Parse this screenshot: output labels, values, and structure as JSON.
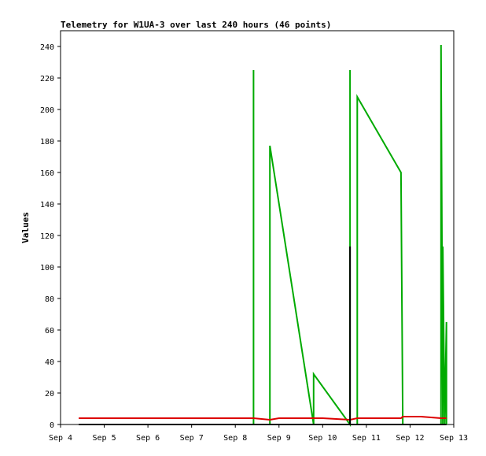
{
  "chart_data": {
    "type": "line",
    "title": "Telemetry for W1UA-3 over last 240 hours (46 points)",
    "ylabel": "Values",
    "xlabel": "",
    "grid": false,
    "legend": "none",
    "xlim": [
      "Sep 4",
      "Sep 13"
    ],
    "ylim": [
      0,
      250
    ],
    "x_ticks": [
      "Sep 4",
      "Sep 5",
      "Sep 6",
      "Sep 7",
      "Sep 8",
      "Sep 9",
      "Sep 10",
      "Sep 11",
      "Sep 12",
      "Sep 13"
    ],
    "y_ticks": [
      0,
      20,
      40,
      60,
      80,
      100,
      120,
      140,
      160,
      180,
      200,
      220,
      240
    ],
    "series": [
      {
        "color": "#00aa00",
        "points": [
          [
            "Sep 8 10:00",
            0
          ],
          [
            "Sep 8 10:00",
            225
          ],
          [
            "Sep 8 10:00",
            0
          ],
          [
            "Sep 8 19:00",
            0
          ],
          [
            "Sep 8 19:00",
            177
          ],
          [
            "Sep 9 19:00",
            0
          ],
          [
            "Sep 9 19:00",
            32
          ],
          [
            "Sep 10 15:00",
            0
          ],
          [
            "Sep 10 15:00",
            225
          ],
          [
            "Sep 10 15:00",
            0
          ],
          [
            "Sep 10 19:00",
            0
          ],
          [
            "Sep 10 19:00",
            208
          ],
          [
            "Sep 11 19:00",
            160
          ],
          [
            "Sep 11 20:00",
            0
          ],
          [
            "Sep 12 17:00",
            0
          ],
          [
            "Sep 12 17:00",
            241
          ],
          [
            "Sep 12 18:00",
            0
          ],
          [
            "Sep 12 18:00",
            113
          ],
          [
            "Sep 12 19:00",
            0
          ],
          [
            "Sep 12 20:00",
            65
          ],
          [
            "Sep 12 20:00",
            0
          ]
        ]
      },
      {
        "color": "#dd0000",
        "points": [
          [
            "Sep 4 10:00",
            4
          ],
          [
            "Sep 8 10:00",
            4
          ],
          [
            "Sep 8 19:00",
            3
          ],
          [
            "Sep 9 00:00",
            4
          ],
          [
            "Sep 10 00:00",
            4
          ],
          [
            "Sep 10 15:00",
            3
          ],
          [
            "Sep 10 19:00",
            4
          ],
          [
            "Sep 11 19:00",
            4
          ],
          [
            "Sep 11 20:00",
            5
          ],
          [
            "Sep 12 06:00",
            5
          ],
          [
            "Sep 12 17:00",
            4
          ],
          [
            "Sep 12 20:00",
            4
          ]
        ]
      },
      {
        "color": "#000000",
        "points": [
          [
            "Sep 4 10:00",
            0
          ],
          [
            "Sep 10 15:00",
            0
          ],
          [
            "Sep 10 15:00",
            113
          ],
          [
            "Sep 10 15:00",
            0
          ],
          [
            "Sep 12 20:00",
            0
          ]
        ]
      }
    ]
  }
}
